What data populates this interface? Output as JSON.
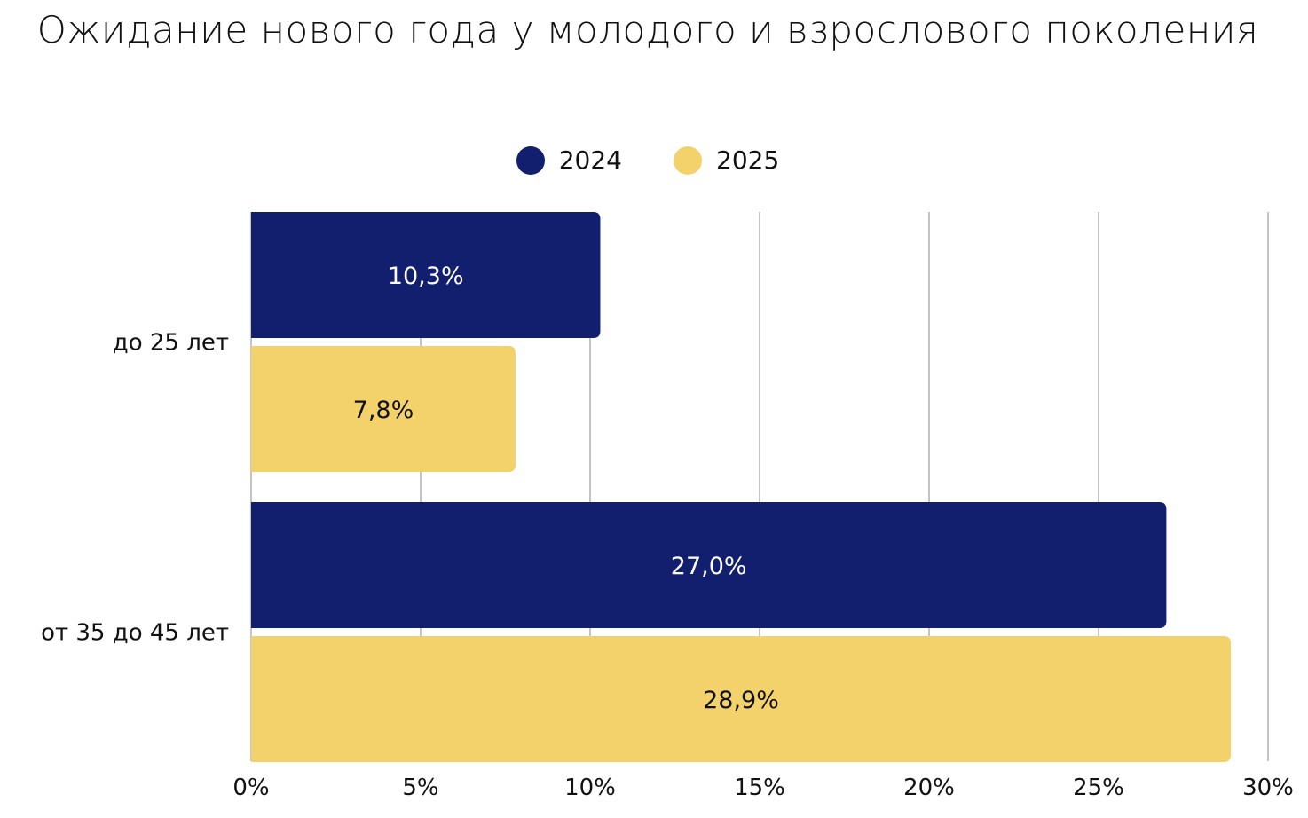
{
  "chart_data": {
    "type": "bar",
    "orientation": "horizontal",
    "title": "Ожидание нового года у молодого и взрослового поколения",
    "categories": [
      "до 25 лет",
      "от 35 до 45 лет"
    ],
    "series": [
      {
        "name": "2024",
        "color": "#121f6e",
        "values": [
          10.3,
          27.0
        ],
        "labels": [
          "10,3%",
          "27,0%"
        ],
        "label_color": "#ffffff"
      },
      {
        "name": "2025",
        "color": "#f3d16b",
        "values": [
          7.8,
          28.9
        ],
        "labels": [
          "7,8%",
          "28,9%"
        ],
        "label_color": "#111111"
      }
    ],
    "xlim": [
      0,
      30
    ],
    "xticks": [
      0,
      5,
      10,
      15,
      20,
      25,
      30
    ],
    "xtick_labels": [
      "0%",
      "5%",
      "10%",
      "15%",
      "20%",
      "25%",
      "30%"
    ],
    "grid": "vertical",
    "legend_position": "top-center"
  }
}
